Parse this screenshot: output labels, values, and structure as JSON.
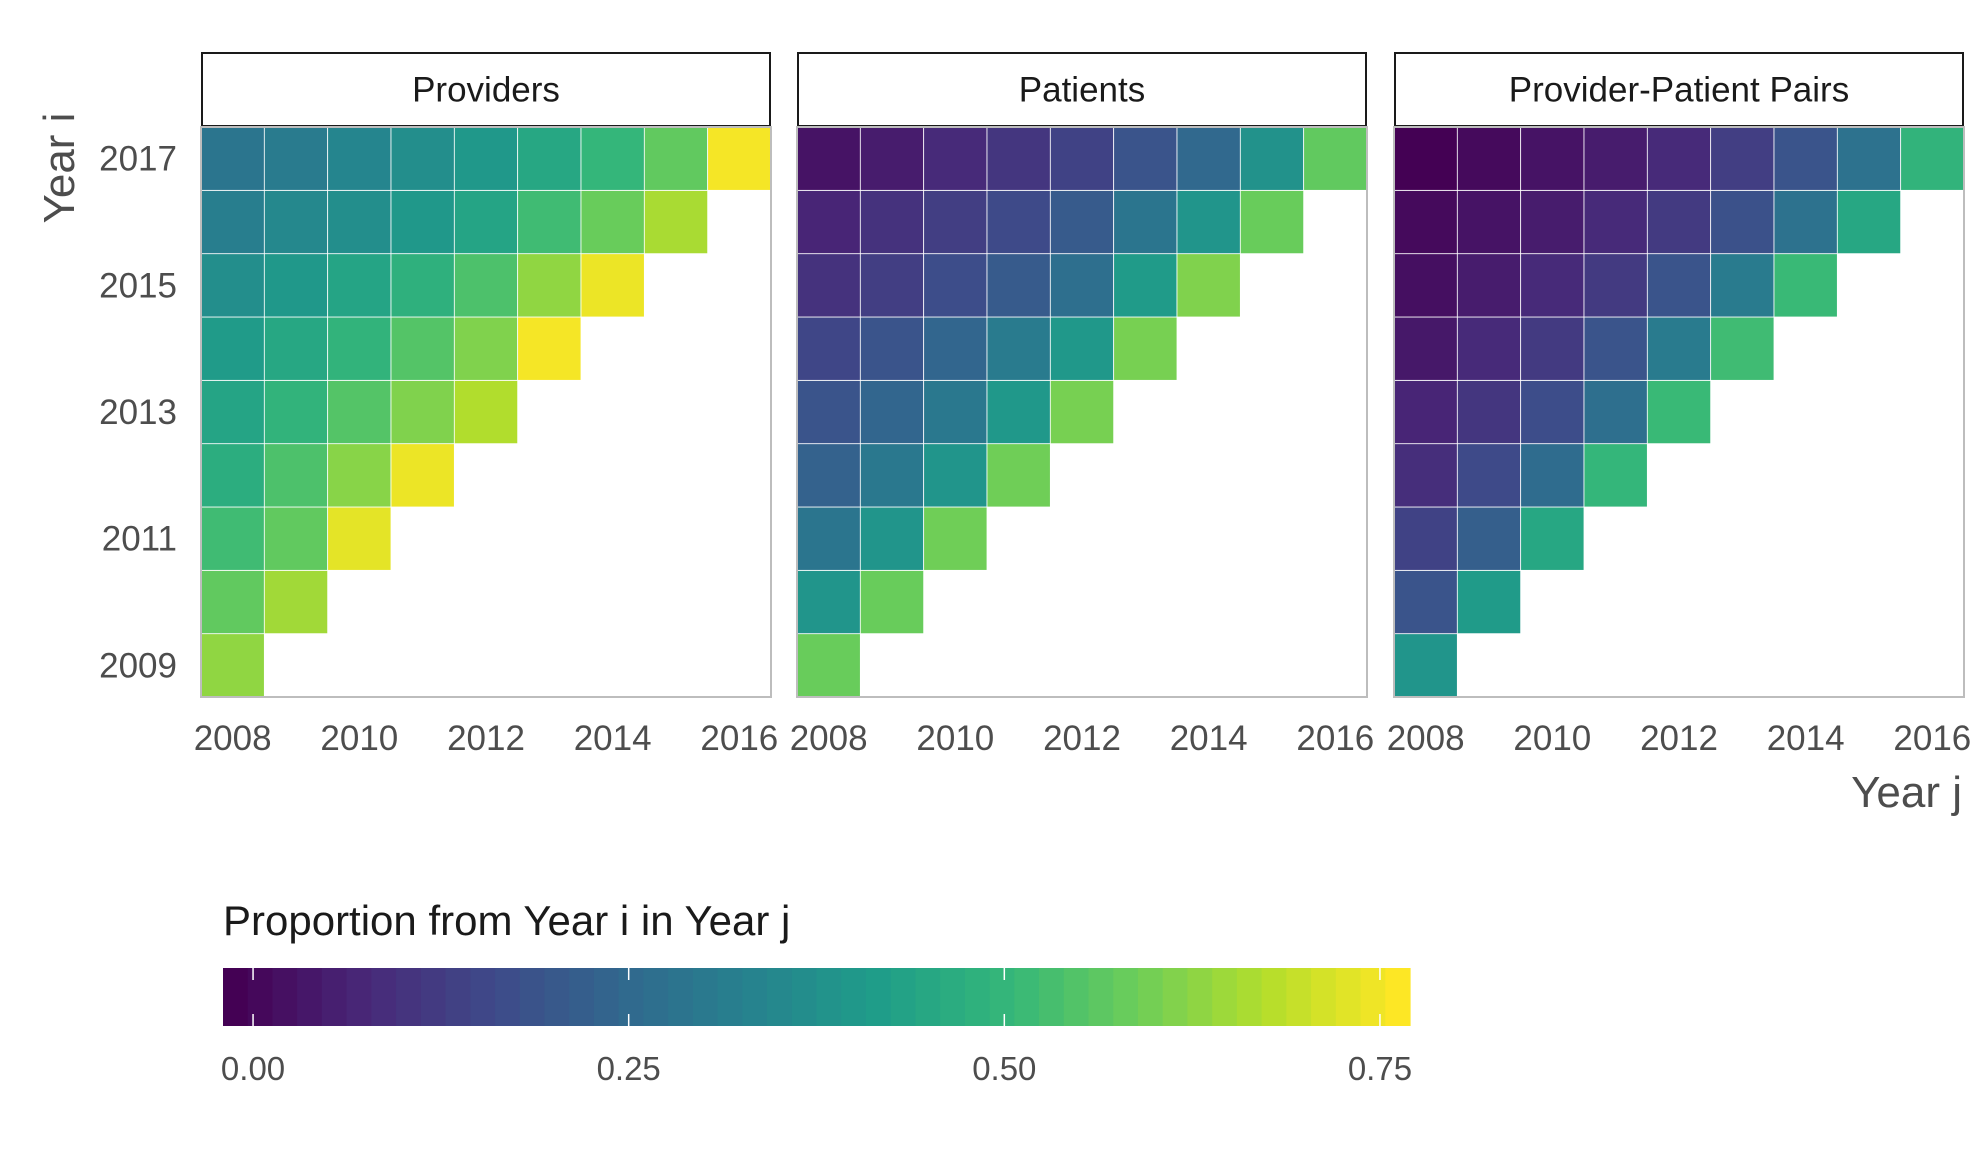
{
  "chart_data": {
    "type": "heatmap",
    "facets": [
      "Providers",
      "Patients",
      "Provider-Patient Pairs"
    ],
    "xlabel": "Year j",
    "ylabel": "Year i",
    "x_categories": [
      2008,
      2009,
      2010,
      2011,
      2012,
      2013,
      2014,
      2015,
      2016
    ],
    "y_categories": [
      2009,
      2010,
      2011,
      2012,
      2013,
      2014,
      2015,
      2016,
      2017
    ],
    "x_tick_labels": [
      "2008",
      "2010",
      "2012",
      "2014",
      "2016"
    ],
    "y_tick_labels": [
      "2009",
      "2011",
      "2013",
      "2015",
      "2017"
    ],
    "color_scale": {
      "name": "viridis",
      "title": "Proportion from Year i in Year j",
      "range": [
        0,
        0.77
      ],
      "ticks": [
        "0.00",
        "0.25",
        "0.50",
        "0.75"
      ],
      "tick_values": [
        0,
        0.25,
        0.5,
        0.75
      ]
    },
    "panels": [
      {
        "name": "Providers",
        "values": [
          [
            0.64
          ],
          [
            0.58,
            0.66
          ],
          [
            0.53,
            0.58,
            0.74
          ],
          [
            0.48,
            0.55,
            0.63,
            0.75
          ],
          [
            0.45,
            0.5,
            0.56,
            0.62,
            0.68
          ],
          [
            0.42,
            0.46,
            0.5,
            0.56,
            0.62,
            0.76
          ],
          [
            0.38,
            0.41,
            0.45,
            0.49,
            0.55,
            0.64,
            0.75
          ],
          [
            0.33,
            0.36,
            0.38,
            0.41,
            0.45,
            0.53,
            0.59,
            0.67
          ],
          [
            0.3,
            0.32,
            0.35,
            0.38,
            0.41,
            0.46,
            0.51,
            0.58,
            0.76
          ]
        ]
      },
      {
        "name": "Patients",
        "values": [
          [
            0.59
          ],
          [
            0.4,
            0.59
          ],
          [
            0.3,
            0.4,
            0.6
          ],
          [
            0.24,
            0.31,
            0.4,
            0.6
          ],
          [
            0.2,
            0.25,
            0.31,
            0.41,
            0.61
          ],
          [
            0.16,
            0.2,
            0.25,
            0.32,
            0.41,
            0.61
          ],
          [
            0.11,
            0.14,
            0.18,
            0.22,
            0.28,
            0.42,
            0.62
          ],
          [
            0.08,
            0.11,
            0.14,
            0.17,
            0.22,
            0.3,
            0.4,
            0.59
          ],
          [
            0.04,
            0.06,
            0.09,
            0.12,
            0.15,
            0.2,
            0.26,
            0.39,
            0.58
          ]
        ]
      },
      {
        "name": "Provider-Patient Pairs",
        "values": [
          [
            0.4
          ],
          [
            0.2,
            0.42
          ],
          [
            0.15,
            0.23,
            0.46
          ],
          [
            0.1,
            0.17,
            0.27,
            0.51
          ],
          [
            0.08,
            0.12,
            0.18,
            0.28,
            0.52
          ],
          [
            0.05,
            0.09,
            0.13,
            0.2,
            0.32,
            0.53
          ],
          [
            0.03,
            0.06,
            0.09,
            0.13,
            0.2,
            0.32,
            0.52
          ],
          [
            0.02,
            0.04,
            0.06,
            0.09,
            0.13,
            0.19,
            0.29,
            0.46
          ],
          [
            0.0,
            0.02,
            0.04,
            0.06,
            0.09,
            0.14,
            0.2,
            0.29,
            0.5
          ]
        ]
      }
    ]
  }
}
